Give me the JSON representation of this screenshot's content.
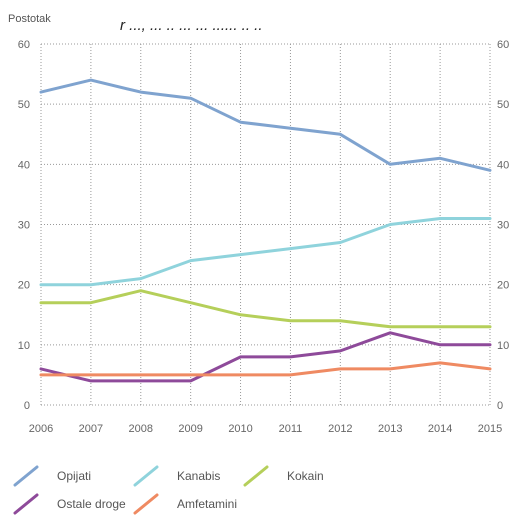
{
  "header_cut": "r ..., ... .. ... ... ...... .. ..",
  "chart_data": {
    "type": "line",
    "title": "",
    "ylabel": "Postotak",
    "xlabel": "",
    "x": [
      "2006",
      "2007",
      "2008",
      "2009",
      "2010",
      "2011",
      "2012",
      "2013",
      "2014",
      "2015"
    ],
    "ylim": [
      0,
      60
    ],
    "yticks": [
      0,
      10,
      20,
      30,
      40,
      50,
      60
    ],
    "grid": true,
    "legend_position": "bottom",
    "series": [
      {
        "name": "Opijati",
        "color": "#7fa3cf",
        "values": [
          52,
          54,
          52,
          51,
          47,
          46,
          45,
          40,
          41,
          39
        ]
      },
      {
        "name": "Kanabis",
        "color": "#8fd3dc",
        "values": [
          20,
          20,
          21,
          24,
          25,
          26,
          27,
          30,
          31,
          31
        ]
      },
      {
        "name": "Kokain",
        "color": "#b5cf5a",
        "values": [
          17,
          17,
          19,
          17,
          15,
          14,
          14,
          13,
          13,
          13
        ]
      },
      {
        "name": "Ostale droge",
        "color": "#8e4a9a",
        "values": [
          6,
          4,
          4,
          4,
          8,
          8,
          9,
          12,
          10,
          10
        ]
      },
      {
        "name": "Amfetamini",
        "color": "#ef8a62",
        "values": [
          5,
          5,
          5,
          5,
          5,
          5,
          6,
          6,
          7,
          6
        ]
      }
    ]
  }
}
